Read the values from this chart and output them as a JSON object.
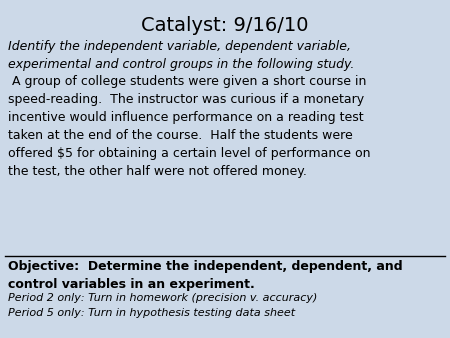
{
  "title": "Catalyst: 9/16/10",
  "title_fontsize": 14,
  "bg_color": "#ccd9e8",
  "italic_text": "Identify the independent variable, dependent variable,\nexperimental and control groups in the following study.",
  "body_text": " A group of college students were given a short course in\nspeed-reading.  The instructor was curious if a monetary\nincentive would influence performance on a reading test\ntaken at the end of the course.  Half the students were\noffered $5 for obtaining a certain level of performance on\nthe test, the other half were not offered money.",
  "objective_text": "Objective:  Determine the independent, dependent, and\ncontrol variables in an experiment.",
  "period2_text": "Period 2 only: Turn in homework (precision v. accuracy)",
  "period5_text": "Period 5 only: Turn in hypothesis testing data sheet",
  "text_color": "#000000",
  "body_fontsize": 9,
  "italic_fontsize": 9,
  "objective_fontsize": 9,
  "period_fontsize": 8
}
